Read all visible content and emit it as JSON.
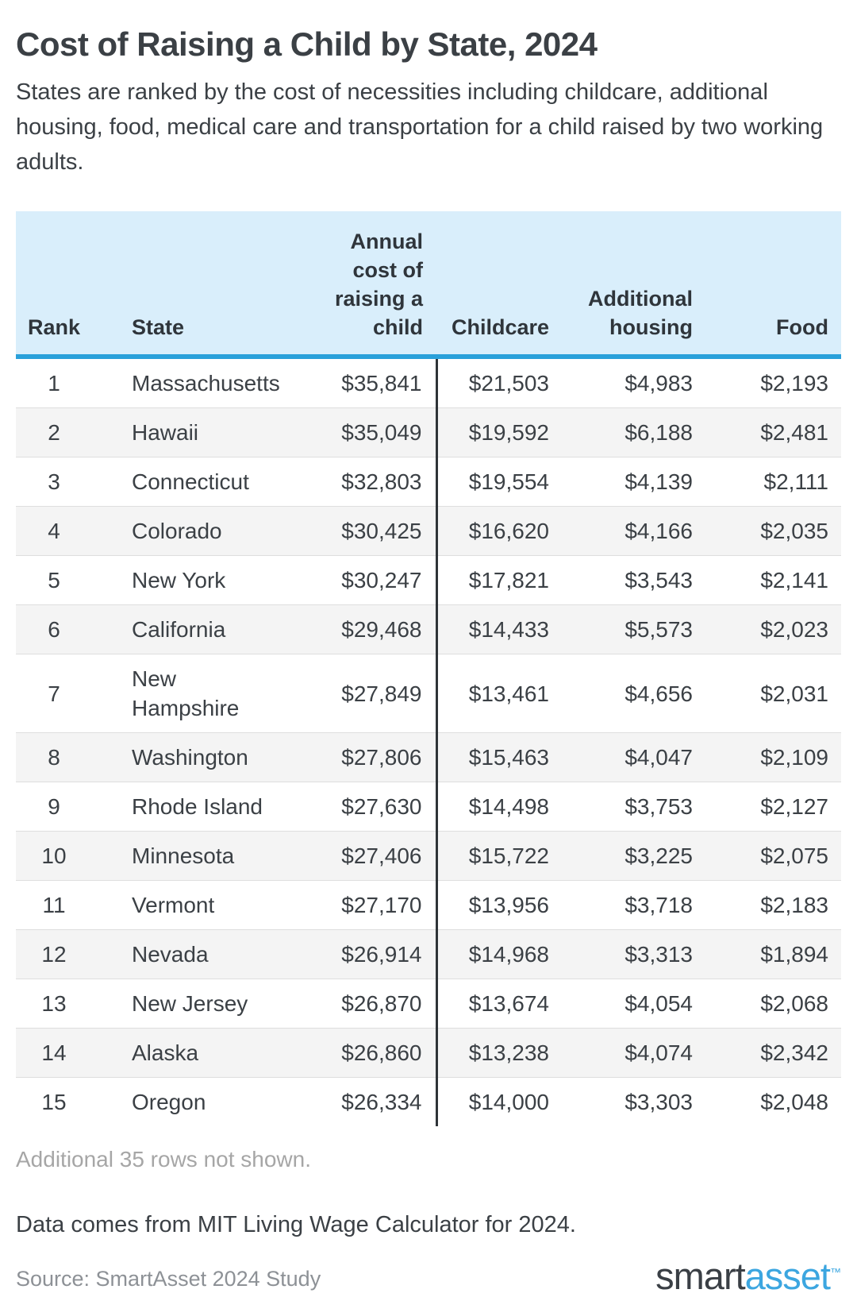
{
  "page": {
    "title": "Cost of Raising a Child by State, 2024",
    "subtitle": "States are ranked by the cost of necessities including childcare, additional housing, food, medical care and transportation for a child raised by two working adults.",
    "rows_note": "Additional 35 rows not shown.",
    "data_note": "Data comes from MIT Living Wage Calculator for 2024.",
    "source": "Source: SmartAsset 2024 Study",
    "logo": {
      "part1": "smart",
      "part2": "asset",
      "tm": "™"
    }
  },
  "colors": {
    "text": "#3b4045",
    "header_bg": "#d9eefb",
    "header_line": "#29a0da",
    "header_text": "#2f353b",
    "divider": "#2f3438",
    "stripe": "#f4f4f4",
    "row_border": "#dedede",
    "muted": "#a6a6a6",
    "source_text": "#8d9196",
    "logo_dark": "#3a3f45",
    "logo_blue": "#3ca6e0"
  },
  "chart_data": {
    "type": "table",
    "title": "Cost of Raising a Child by State, 2024",
    "columns": [
      "Rank",
      "State",
      "Annual cost of raising a child",
      "Childcare",
      "Additional housing",
      "Food"
    ],
    "column_keys": [
      "rank",
      "state",
      "annual-cost",
      "childcare",
      "additional-housing",
      "food"
    ],
    "rows": [
      [
        "1",
        "Massachusetts",
        "$35,841",
        "$21,503",
        "$4,983",
        "$2,193"
      ],
      [
        "2",
        "Hawaii",
        "$35,049",
        "$19,592",
        "$6,188",
        "$2,481"
      ],
      [
        "3",
        "Connecticut",
        "$32,803",
        "$19,554",
        "$4,139",
        "$2,111"
      ],
      [
        "4",
        "Colorado",
        "$30,425",
        "$16,620",
        "$4,166",
        "$2,035"
      ],
      [
        "5",
        "New York",
        "$30,247",
        "$17,821",
        "$3,543",
        "$2,141"
      ],
      [
        "6",
        "California",
        "$29,468",
        "$14,433",
        "$5,573",
        "$2,023"
      ],
      [
        "7",
        "New Hampshire",
        "$27,849",
        "$13,461",
        "$4,656",
        "$2,031"
      ],
      [
        "8",
        "Washington",
        "$27,806",
        "$15,463",
        "$4,047",
        "$2,109"
      ],
      [
        "9",
        "Rhode Island",
        "$27,630",
        "$14,498",
        "$3,753",
        "$2,127"
      ],
      [
        "10",
        "Minnesota",
        "$27,406",
        "$15,722",
        "$3,225",
        "$2,075"
      ],
      [
        "11",
        "Vermont",
        "$27,170",
        "$13,956",
        "$3,718",
        "$2,183"
      ],
      [
        "12",
        "Nevada",
        "$26,914",
        "$14,968",
        "$3,313",
        "$1,894"
      ],
      [
        "13",
        "New Jersey",
        "$26,870",
        "$13,674",
        "$4,054",
        "$2,068"
      ],
      [
        "14",
        "Alaska",
        "$26,860",
        "$13,238",
        "$4,074",
        "$2,342"
      ],
      [
        "15",
        "Oregon",
        "$26,334",
        "$14,000",
        "$3,303",
        "$2,048"
      ]
    ]
  }
}
